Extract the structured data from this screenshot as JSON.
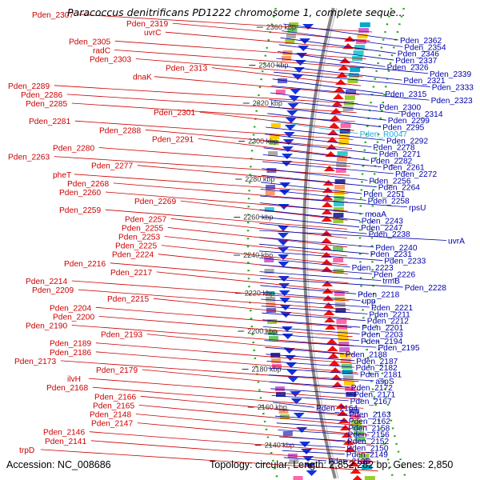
{
  "title": "Paracoccus denitrificans PD1222 chromosome 1, complete seque...",
  "footer": {
    "accession": "Accession: NC_008686",
    "topology": "Topology: circular; Length: 2,852,282 bp; Genes: 2,850"
  },
  "colors": {
    "forward_gene": "#ee1111",
    "reverse_gene": "#1133dd",
    "left_label": "#cc0000",
    "right_label": "#0000aa",
    "highlight_label": "#22aadd",
    "backbone": "#888888",
    "gc_track": "#22aa22"
  },
  "kbp_ticks": [
    "2360 kbp",
    "2340 kbp",
    "2320 kbp",
    "2300 kbp",
    "2280 kbp",
    "2260 kbp",
    "2240 kbp",
    "2220 kbp",
    "2200 kbp",
    "2180 kbp",
    "2160 kbp",
    "2140 kbp"
  ],
  "left_labels": [
    "Pden_2307",
    "Pden_2319",
    "uvrC",
    "Pden_2305",
    "radC",
    "Pden_2303",
    "Pden_2313",
    "dnaK",
    "Pden_2289",
    "Pden_2286",
    "Pden_2285",
    "Pden_2301",
    "Pden_2281",
    "Pden_2288",
    "Pden_2291",
    "Pden_2280",
    "Pden_2263",
    "Pden_2277",
    "pheT",
    "Pden_2268",
    "Pden_2260",
    "Pden_2269",
    "Pden_2259",
    "Pden_2257",
    "Pden_2255",
    "Pden_2253",
    "Pden_2225",
    "Pden_2224",
    "Pden_2216",
    "Pden_2217",
    "Pden_2214",
    "Pden_2209",
    "Pden_2215",
    "Pden_2204",
    "Pden_2200",
    "Pden_2190",
    "Pden_2193",
    "Pden_2189",
    "Pden_2186",
    "Pden_2173",
    "Pden_2179",
    "ilvH",
    "Pden_2168",
    "Pden_2166",
    "Pden_2165",
    "Pden_2148",
    "Pden_2147",
    "Pden_2146",
    "Pden_2141",
    "trpD"
  ],
  "right_labels": [
    "Pden_2362",
    "Pden_2354",
    "Pden_2346",
    "Pden_2337",
    "Pden_2326",
    "Pden_2339",
    "Pden_2321",
    "Pden_2333",
    "Pden_2315",
    "Pden_2323",
    "Pden_2300",
    "Pden_2314",
    "Pden_2299",
    "Pden_2295",
    "Pden_R0047",
    "Pden_2292",
    "Pden_2278",
    "Pden_2271",
    "Pden_2282",
    "Pden_2261",
    "Pden_2272",
    "Pden_2256",
    "Pden_2264",
    "Pden_2251",
    "Pden_2258",
    "rpsU",
    "moaA",
    "Pden_2243",
    "Pden_2247",
    "Pden_2238",
    "uvrA",
    "Pden_2240",
    "Pden_2231",
    "Pden_2233",
    "Pden_2223",
    "Pden_2226",
    "trmB",
    "Pden_2228",
    "Pden_2218",
    "upp",
    "Pden_2221",
    "Pden_2211",
    "Pden_2212",
    "Pden_2201",
    "Pden_2203",
    "Pden_2194",
    "Pden_2195",
    "Pden_2188",
    "Pden_2187",
    "Pden_2182",
    "Pden_2181",
    "aspS",
    "Pden_2172",
    "Pden_2171",
    "Pden_2167",
    "Pden_2164",
    "Pden_2163",
    "Pden_2162",
    "Pden_2158",
    "Pden_2156",
    "Pden_2152",
    "Pden_2150",
    "Pden_2149",
    "Pden_2135"
  ]
}
